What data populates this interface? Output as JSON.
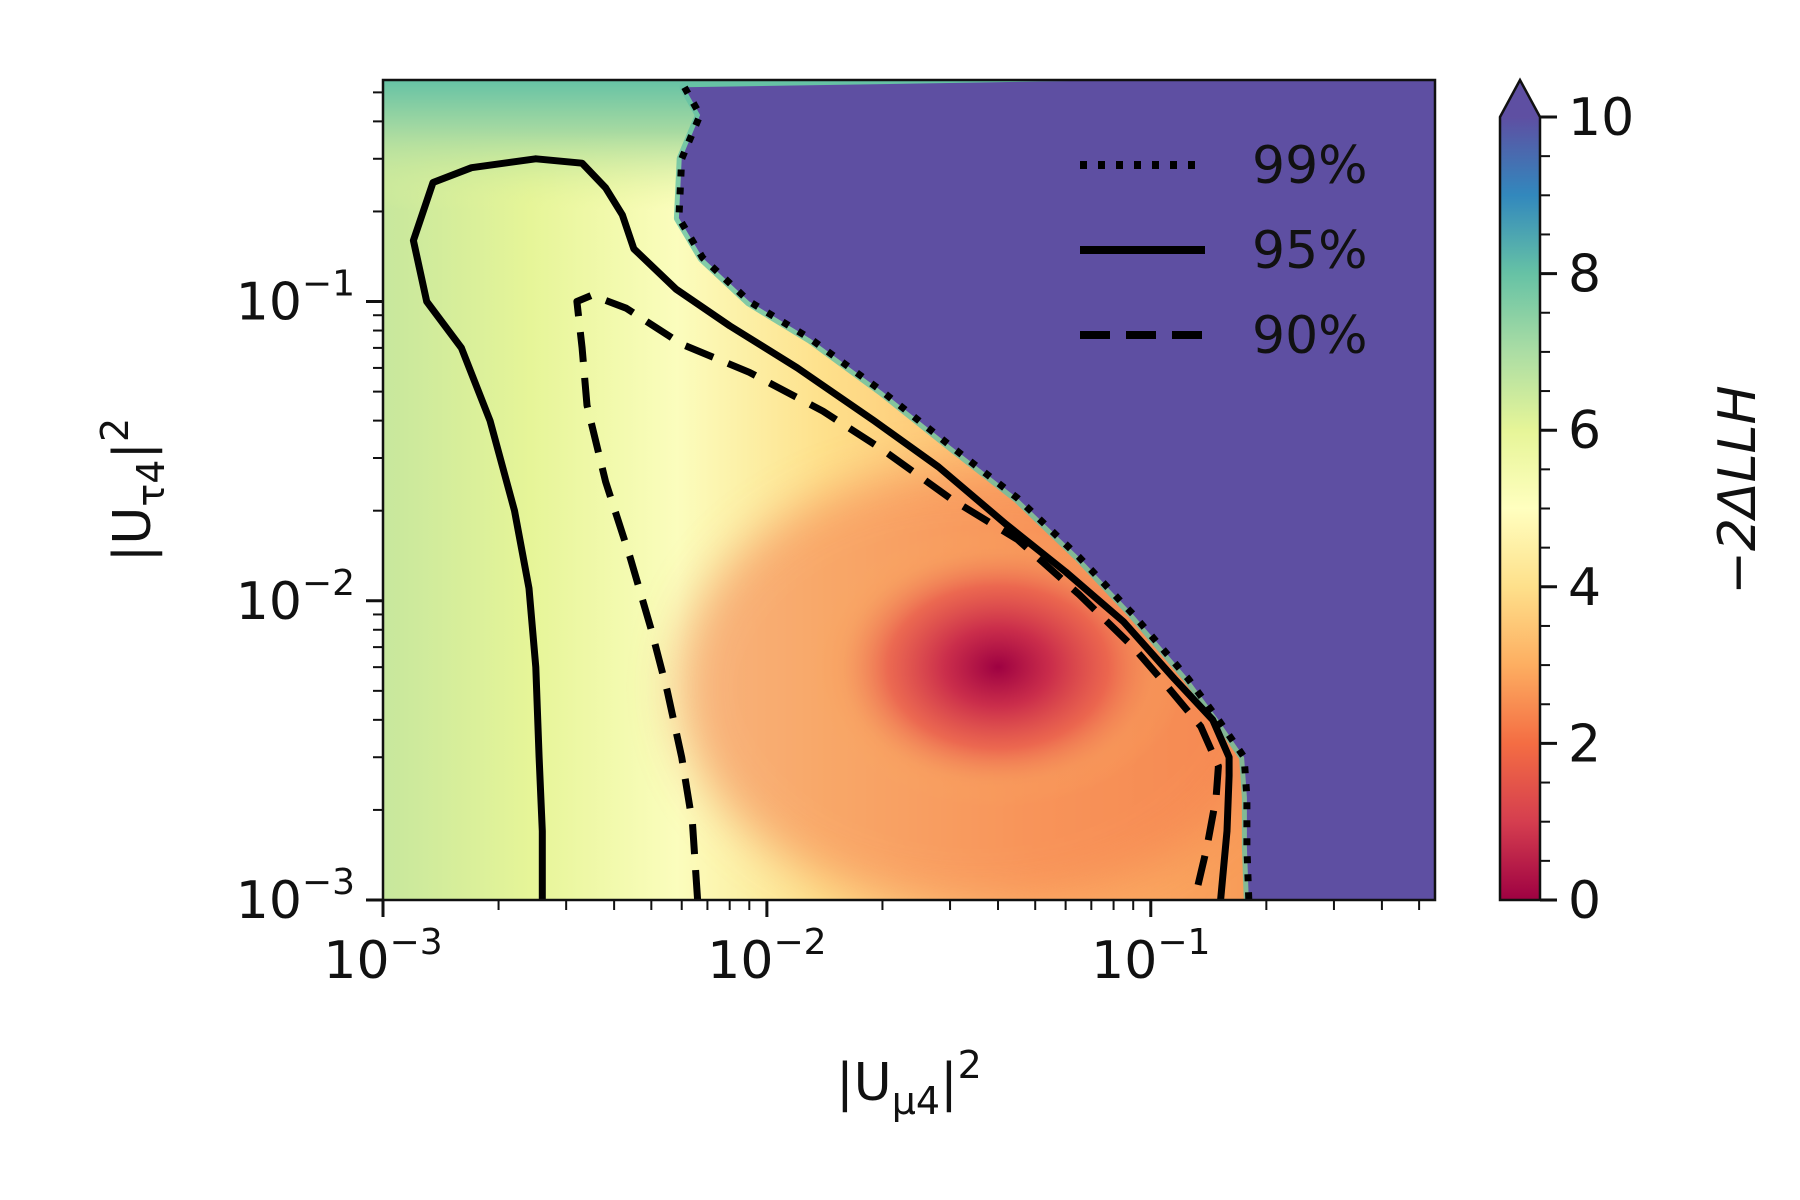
{
  "chart_data": {
    "type": "heatmap",
    "xlabel_main": "|U",
    "xlabel_sub": "μ4",
    "xlabel_sup": "2",
    "ylabel_main": "|U",
    "ylabel_sub": "τ4",
    "ylabel_sup": "2",
    "x_scale": "log",
    "y_scale": "log",
    "xlim": [
      0.001,
      0.55
    ],
    "ylim": [
      0.001,
      0.55
    ],
    "x_ticks": [
      {
        "base": "10",
        "exp": "−3",
        "value": 0.001
      },
      {
        "base": "10",
        "exp": "−2",
        "value": 0.01
      },
      {
        "base": "10",
        "exp": "−1",
        "value": 0.1
      }
    ],
    "y_ticks": [
      {
        "base": "10",
        "exp": "−3",
        "value": 0.001
      },
      {
        "base": "10",
        "exp": "−2",
        "value": 0.01
      },
      {
        "base": "10",
        "exp": "−1",
        "value": 0.1
      }
    ],
    "colorbar": {
      "label": "−2ΔLLH",
      "min": 0,
      "max": 10,
      "extend": "max",
      "ticks": [
        "0",
        "2",
        "4",
        "6",
        "8",
        "10"
      ],
      "colormap": "Spectral",
      "colors": [
        "#9e0142",
        "#d53e4f",
        "#f46d43",
        "#fdae61",
        "#fee08b",
        "#ffffbf",
        "#e6f598",
        "#abdda4",
        "#66c2a5",
        "#3288bd",
        "#5e4fa2"
      ]
    },
    "minimum": {
      "x": 0.04,
      "y": 0.006,
      "value": 0
    },
    "legend": {
      "placement": "top-right",
      "entries": [
        {
          "label": "99%",
          "style": "dotted"
        },
        {
          "label": "95%",
          "style": "solid"
        },
        {
          "label": "90%",
          "style": "dashed"
        }
      ]
    },
    "contours": [
      {
        "name": "contour-99",
        "style": "dotted",
        "points": [
          [
            0.0061,
            0.52
          ],
          [
            0.0067,
            0.42
          ],
          [
            0.006,
            0.3
          ],
          [
            0.0059,
            0.19
          ],
          [
            0.0068,
            0.14
          ],
          [
            0.009,
            0.1
          ],
          [
            0.013,
            0.075
          ],
          [
            0.02,
            0.05
          ],
          [
            0.03,
            0.033
          ],
          [
            0.045,
            0.022
          ],
          [
            0.065,
            0.014
          ],
          [
            0.09,
            0.009
          ],
          [
            0.125,
            0.0055
          ],
          [
            0.15,
            0.004
          ],
          [
            0.175,
            0.003
          ],
          [
            0.178,
            0.0022
          ],
          [
            0.178,
            0.0015
          ],
          [
            0.18,
            0.001
          ]
        ]
      },
      {
        "name": "contour-95",
        "style": "solid",
        "points": [
          [
            0.0026,
            0.001
          ],
          [
            0.0026,
            0.0017
          ],
          [
            0.00255,
            0.003
          ],
          [
            0.0025,
            0.006
          ],
          [
            0.0024,
            0.011
          ],
          [
            0.0022,
            0.02
          ],
          [
            0.0019,
            0.04
          ],
          [
            0.0016,
            0.07
          ],
          [
            0.0013,
            0.1
          ],
          [
            0.0012,
            0.16
          ],
          [
            0.00135,
            0.25
          ],
          [
            0.0017,
            0.28
          ],
          [
            0.0025,
            0.3
          ],
          [
            0.0033,
            0.29
          ],
          [
            0.0038,
            0.24
          ],
          [
            0.0042,
            0.195
          ],
          [
            0.0045,
            0.15
          ],
          [
            0.0058,
            0.11
          ],
          [
            0.008,
            0.083
          ],
          [
            0.012,
            0.06
          ],
          [
            0.019,
            0.04
          ],
          [
            0.028,
            0.028
          ],
          [
            0.042,
            0.018
          ],
          [
            0.06,
            0.0125
          ],
          [
            0.085,
            0.0085
          ],
          [
            0.115,
            0.0055
          ],
          [
            0.145,
            0.004
          ],
          [
            0.16,
            0.003
          ],
          [
            0.16,
            0.0026
          ],
          [
            0.158,
            0.0017
          ],
          [
            0.152,
            0.001
          ]
        ]
      },
      {
        "name": "contour-90",
        "style": "dashed",
        "points": [
          [
            0.0066,
            0.001
          ],
          [
            0.0064,
            0.0018
          ],
          [
            0.006,
            0.003
          ],
          [
            0.0055,
            0.005
          ],
          [
            0.005,
            0.008
          ],
          [
            0.0044,
            0.014
          ],
          [
            0.0038,
            0.025
          ],
          [
            0.0034,
            0.045
          ],
          [
            0.0033,
            0.07
          ],
          [
            0.0032,
            0.1
          ],
          [
            0.0035,
            0.105
          ],
          [
            0.0043,
            0.095
          ],
          [
            0.006,
            0.072
          ],
          [
            0.009,
            0.058
          ],
          [
            0.014,
            0.043
          ],
          [
            0.02,
            0.032
          ],
          [
            0.03,
            0.022
          ],
          [
            0.045,
            0.016
          ],
          [
            0.065,
            0.0105
          ],
          [
            0.09,
            0.007
          ],
          [
            0.11,
            0.0052
          ],
          [
            0.135,
            0.0038
          ],
          [
            0.15,
            0.0028
          ],
          [
            0.148,
            0.0022
          ],
          [
            0.14,
            0.0015
          ],
          [
            0.13,
            0.001
          ]
        ]
      }
    ]
  }
}
